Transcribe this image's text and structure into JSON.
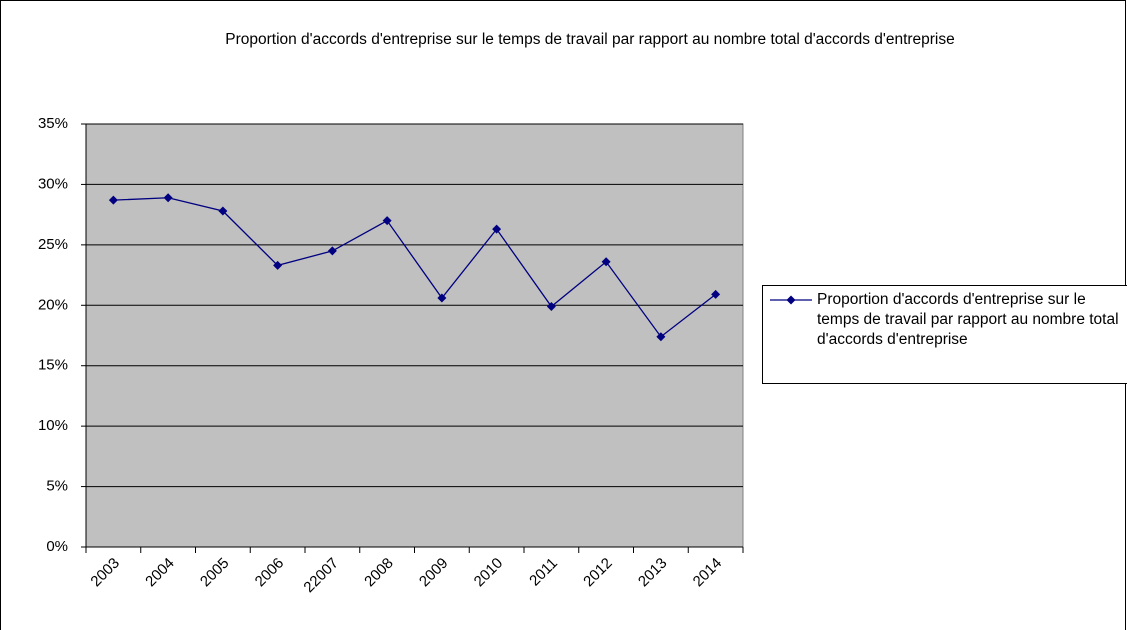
{
  "chart_data": {
    "type": "line",
    "title": "Proportion d'accords d'entreprise sur le temps de travail par rapport au nombre total d'accords d'entreprise",
    "categories": [
      "2003",
      "2004",
      "2005",
      "2006",
      "22007",
      "2008",
      "2009",
      "2010",
      "2011",
      "2012",
      "2013",
      "2014"
    ],
    "series": [
      {
        "name": "Proportion d'accords d'entreprise sur le temps de travail par rapport au nombre total d'accords d'entreprise",
        "color": "#000080",
        "values": [
          28.7,
          28.9,
          27.8,
          23.3,
          24.5,
          27.0,
          20.6,
          26.3,
          19.9,
          23.6,
          17.4,
          20.9
        ]
      }
    ],
    "ylim": [
      0,
      35
    ],
    "yticks": [
      {
        "value": 0,
        "label": "0%"
      },
      {
        "value": 5,
        "label": "5%"
      },
      {
        "value": 10,
        "label": "10%"
      },
      {
        "value": 15,
        "label": "15%"
      },
      {
        "value": 20,
        "label": "20%"
      },
      {
        "value": 25,
        "label": "25%"
      },
      {
        "value": 30,
        "label": "30%"
      },
      {
        "value": 35,
        "label": "35%"
      }
    ],
    "grid": true,
    "legend": "right",
    "plot_background": "#c0c0c0"
  }
}
